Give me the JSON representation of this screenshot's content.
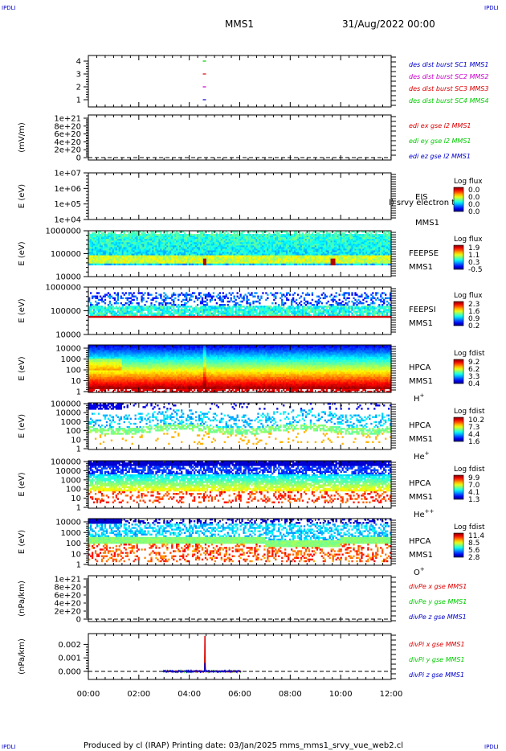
{
  "header": {
    "corner_tl": "IPDLI",
    "corner_tr": "IPDLI",
    "corner_bl": "IPDLI",
    "corner_br": "IPDLI",
    "mission": "MMS1",
    "datetime": "31/Aug/2022 00:00",
    "footer": "Produced by cl (IRAP)   Printing date: 03/Jan/2025   mms_mms1_srvy_vue_web2.cl"
  },
  "colors": {
    "red": "#dd0000",
    "green": "#00cc00",
    "blue": "#0000cc",
    "magenta": "#cc00cc"
  },
  "chart_data": {
    "type": "line",
    "x_axis": {
      "ticks": [
        "00:00",
        "02:00",
        "04:00",
        "06:00",
        "08:00",
        "10:00",
        "12:00"
      ],
      "range_hours": [
        0,
        12
      ]
    },
    "panels": [
      {
        "id": "burst",
        "type": "scatter",
        "ylabel": "",
        "yticks": [
          "1",
          "2",
          "3",
          "4"
        ],
        "legend": [
          {
            "text": "des dist burst SC1 MMS1",
            "color": "#0000cc"
          },
          {
            "text": "des dist burst SC2 MMS2",
            "color": "#cc00cc"
          },
          {
            "text": "des dist burst SC3 MMS3",
            "color": "#dd0000"
          },
          {
            "text": "des dist burst SC4 MMS4",
            "color": "#00cc00"
          }
        ],
        "points": [
          {
            "x_hours": 4.6,
            "y": 1,
            "color": "#0000cc"
          },
          {
            "x_hours": 4.6,
            "y": 2,
            "color": "#cc00cc"
          },
          {
            "x_hours": 4.6,
            "y": 3,
            "color": "#dd0000"
          },
          {
            "x_hours": 4.6,
            "y": 4,
            "color": "#00cc00"
          }
        ]
      },
      {
        "id": "edi",
        "type": "line",
        "ylabel": "(mV/m)",
        "yticks": [
          "0",
          "2e+20",
          "4e+20",
          "6e+20",
          "8e+20",
          "1e+21"
        ],
        "legend": [
          {
            "text": "edi ex gse l2 MMS1",
            "color": "#dd0000"
          },
          {
            "text": "edi ey gse l2 MMS1",
            "color": "#00cc00"
          },
          {
            "text": "edi ez gse l2 MMS1",
            "color": "#0000cc"
          }
        ]
      },
      {
        "id": "eis",
        "type": "heatmap",
        "ylabel": "E (eV)",
        "yticks": [
          "1e+04",
          "1e+05",
          "1e+06",
          "1e+07"
        ],
        "instrument": [
          "EIS",
          "MMS1"
        ],
        "overlay_note": "l) srvy electron to",
        "colorbar": {
          "title": "Log flux",
          "labels": [
            "0.0",
            "0.0",
            "0.0",
            "0.0"
          ]
        }
      },
      {
        "id": "feepse",
        "type": "heatmap",
        "ylabel": "E (eV)",
        "yticks": [
          "10000",
          "100000",
          "1000000"
        ],
        "instrument": [
          "FEEPSE",
          "MMS1"
        ],
        "colorbar": {
          "title": "Log flux",
          "labels": [
            "1.9",
            "1.1",
            "0.3",
            "-0.5"
          ]
        }
      },
      {
        "id": "feepsi",
        "type": "heatmap",
        "ylabel": "E (eV)",
        "yticks": [
          "10000",
          "100000",
          "1000000"
        ],
        "instrument": [
          "FEEPSI",
          "MMS1"
        ],
        "colorbar": {
          "title": "Log flux",
          "labels": [
            "2.3",
            "1.6",
            "0.9",
            "0.2"
          ]
        }
      },
      {
        "id": "hpca_h",
        "type": "heatmap",
        "ylabel": "E (eV)",
        "yticks": [
          "1",
          "10",
          "100",
          "1000",
          "10000"
        ],
        "instrument": [
          "HPCA",
          "MMS1",
          "H+"
        ],
        "colorbar": {
          "title": "Log fdist",
          "labels": [
            "9.2",
            "6.2",
            "3.3",
            "0.4"
          ]
        }
      },
      {
        "id": "hpca_he",
        "type": "heatmap",
        "ylabel": "E (eV)",
        "yticks": [
          "1",
          "10",
          "100",
          "1000",
          "10000",
          "100000"
        ],
        "instrument": [
          "HPCA",
          "MMS1",
          "He+"
        ],
        "colorbar": {
          "title": "Log fdist",
          "labels": [
            "10.2",
            "7.3",
            "4.4",
            "1.6"
          ]
        }
      },
      {
        "id": "hpca_hepp",
        "type": "heatmap",
        "ylabel": "E (eV)",
        "yticks": [
          "1",
          "10",
          "100",
          "1000",
          "10000",
          "100000"
        ],
        "instrument": [
          "HPCA",
          "MMS1",
          "He++"
        ],
        "colorbar": {
          "title": "Log fdist",
          "labels": [
            "9.9",
            "7.0",
            "4.1",
            "1.3"
          ]
        }
      },
      {
        "id": "hpca_o",
        "type": "heatmap",
        "ylabel": "E (eV)",
        "yticks": [
          "1",
          "10",
          "100",
          "1000",
          "10000"
        ],
        "instrument": [
          "HPCA",
          "MMS1",
          "O+"
        ],
        "colorbar": {
          "title": "Log fdist",
          "labels": [
            "11.4",
            "8.5",
            "5.6",
            "2.8"
          ]
        }
      },
      {
        "id": "divpe",
        "type": "line",
        "ylabel": "(nPa/km)",
        "yticks": [
          "0",
          "2e+20",
          "4e+20",
          "6e+20",
          "8e+20",
          "1e+21"
        ],
        "legend": [
          {
            "text": "divPe x gse MMS1",
            "color": "#dd0000"
          },
          {
            "text": "divPe y gse MMS1",
            "color": "#00cc00"
          },
          {
            "text": "divPe z gse MMS1",
            "color": "#0000cc"
          }
        ]
      },
      {
        "id": "divpi",
        "type": "line",
        "ylabel": "(nPa/km)",
        "yticks": [
          "0.000",
          "0.001",
          "0.002"
        ],
        "ylim": [
          -0.0006,
          0.0028
        ],
        "legend": [
          {
            "text": "divPi x gse MMS1",
            "color": "#dd0000"
          },
          {
            "text": "divPi y gse MMS1",
            "color": "#00cc00"
          },
          {
            "text": "divPi z gse MMS1",
            "color": "#0000cc"
          }
        ],
        "data_window_hours": [
          2.95,
          6.05
        ],
        "spike": {
          "x_hours": 4.62,
          "x_peak": 0.0026,
          "y_peak": 0.0012,
          "z_peak": 0.0006
        }
      }
    ]
  }
}
